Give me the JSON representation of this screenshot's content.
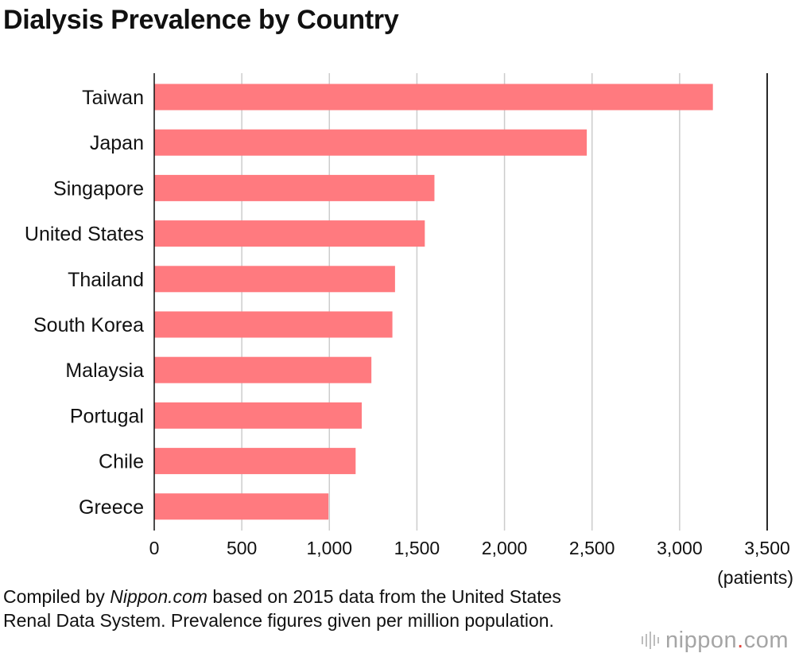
{
  "chart_data": {
    "type": "bar",
    "orientation": "horizontal",
    "title": "Dialysis Prevalence by Country",
    "unit_label": "(patients)",
    "categories": [
      "Taiwan",
      "Japan",
      "Singapore",
      "United States",
      "Thailand",
      "South Korea",
      "Malaysia",
      "Portugal",
      "Chile",
      "Greece"
    ],
    "values": [
      3190,
      2470,
      1600,
      1545,
      1375,
      1360,
      1240,
      1185,
      1150,
      995
    ],
    "xlim": [
      0,
      3500
    ],
    "ticks": [
      0,
      500,
      1000,
      1500,
      2000,
      2500,
      3000,
      3500
    ],
    "tick_labels": [
      "0",
      "500",
      "1,000",
      "1,500",
      "2,000",
      "2,500",
      "3,000",
      "3,500"
    ],
    "grid": true,
    "bar_color": "#ff7a7f",
    "grid_color": "#cccccc"
  },
  "note": {
    "prefix": "Compiled by ",
    "source": "Nippon.com",
    "suffix": " based on 2015 data from the United States Renal Data System. Prevalence figures given per million population."
  },
  "logo": {
    "name": "nippon",
    "dot": ".",
    "tld": "com"
  }
}
